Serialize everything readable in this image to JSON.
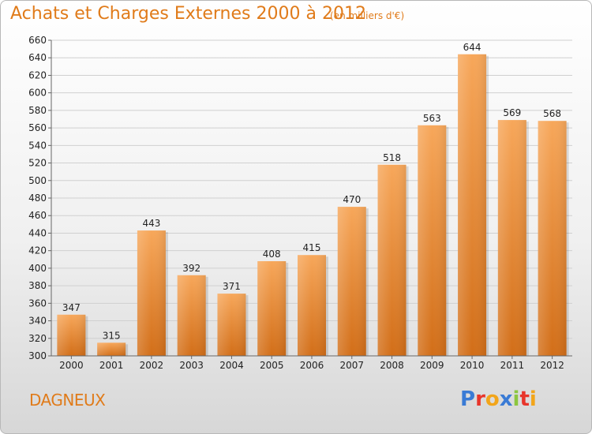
{
  "title": "Achats et Charges Externes 2000 à 2012",
  "subtitle": "(en milliers d'€)",
  "city": "DAGNEUX",
  "logo": {
    "text": "Proxiti",
    "colors": [
      "#3a7bd5",
      "#e8352b",
      "#f2a51a",
      "#3a7bd5",
      "#8cc63f",
      "#e8352b",
      "#f2a51a"
    ]
  },
  "colors": {
    "accent": "#e07b1a",
    "bar_top": "#f7a75a",
    "bar_bottom": "#d26e18"
  },
  "chart_data": {
    "type": "bar",
    "categories": [
      "2000",
      "2001",
      "2002",
      "2003",
      "2004",
      "2005",
      "2006",
      "2007",
      "2008",
      "2009",
      "2010",
      "2011",
      "2012"
    ],
    "values": [
      347,
      315,
      443,
      392,
      371,
      408,
      415,
      470,
      518,
      563,
      644,
      569,
      568
    ],
    "ylim": [
      300,
      660
    ],
    "yticks": [
      300,
      320,
      340,
      360,
      380,
      400,
      420,
      440,
      460,
      480,
      500,
      520,
      540,
      560,
      580,
      600,
      620,
      640,
      660
    ],
    "grid": true,
    "data_labels": true
  }
}
